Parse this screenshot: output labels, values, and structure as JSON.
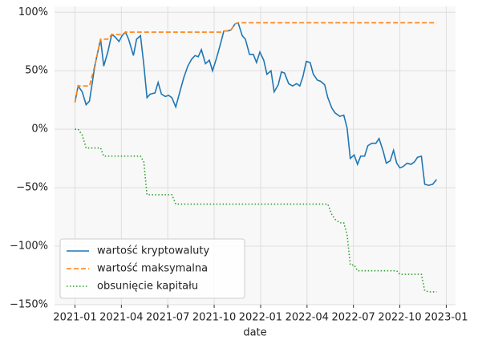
{
  "chart_data": {
    "type": "line",
    "x_label": "date",
    "x": [
      2021,
      2021.017,
      2021.039,
      2021.06,
      2021.078,
      2021.108,
      2021.138,
      2021.155,
      2021.177,
      2021.198,
      2021.216,
      2021.237,
      2021.254,
      2021.272,
      2021.289,
      2021.315,
      2021.332,
      2021.353,
      2021.371,
      2021.388,
      2021.405,
      2021.431,
      2021.448,
      2021.466,
      2021.487,
      2021.504,
      2021.522,
      2021.543,
      2021.565,
      2021.586,
      2021.608,
      2021.629,
      2021.647,
      2021.664,
      2021.681,
      2021.703,
      2021.724,
      2021.741,
      2021.763,
      2021.784,
      2021.802,
      2021.823,
      2021.841,
      2021.862,
      2021.879,
      2021.901,
      2021.918,
      2021.94,
      2021.961,
      2021.978,
      2021.996,
      2022.017,
      2022.034,
      2022.056,
      2022.073,
      2022.095,
      2022.112,
      2022.129,
      2022.151,
      2022.172,
      2022.194,
      2022.211,
      2022.228,
      2022.246,
      2022.267,
      2022.284,
      2022.306,
      2022.323,
      2022.345,
      2022.362,
      2022.384,
      2022.401,
      2022.427,
      2022.448,
      2022.466,
      2022.483,
      2022.504,
      2022.522,
      2022.539,
      2022.56,
      2022.578,
      2022.599,
      2022.621,
      2022.638,
      2022.659,
      2022.677,
      2022.698,
      2022.716,
      2022.733,
      2022.75,
      2022.767,
      2022.789,
      2022.81,
      2022.828,
      2022.845,
      2022.866,
      2022.884,
      2022.905,
      2022.927,
      2022.948
    ],
    "series": [
      {
        "name": "wartość kryptowaluty",
        "color": "#1f77b4",
        "linestyle": "solid",
        "values": [
          23,
          37,
          32,
          21,
          24,
          55,
          77,
          54,
          66,
          81,
          79,
          75,
          80,
          83,
          77,
          63,
          77,
          80,
          55,
          27,
          30,
          31,
          40,
          30,
          28,
          29,
          27,
          19,
          32,
          44,
          54,
          60,
          63,
          62,
          68,
          56,
          59,
          50,
          61,
          73,
          84,
          84,
          85,
          90,
          91,
          80,
          77,
          64,
          64,
          57,
          66,
          59,
          47,
          50,
          32,
          38,
          49,
          48,
          39,
          37,
          39,
          37,
          45,
          58,
          57,
          47,
          42,
          41,
          38,
          27,
          18,
          14,
          11,
          12,
          1,
          -25,
          -22,
          -30,
          -23,
          -23,
          -14,
          -12,
          -12,
          -8,
          -18,
          -29,
          -27,
          -18,
          -29,
          -33,
          -32,
          -29,
          -30,
          -28,
          -24,
          -23,
          -47,
          -48,
          -47,
          -43
        ]
      },
      {
        "name": "wartość maksymalna",
        "color": "#ff7f0e",
        "linestyle": "dashed",
        "values": [
          23,
          37,
          37,
          37,
          37,
          55,
          77,
          77,
          77,
          81,
          81,
          81,
          81,
          83,
          83,
          83,
          83,
          83,
          83,
          83,
          83,
          83,
          83,
          83,
          83,
          83,
          83,
          83,
          83,
          83,
          83,
          83,
          83,
          83,
          83,
          83,
          83,
          83,
          83,
          83,
          84,
          84,
          85,
          90,
          91,
          91,
          91,
          91,
          91,
          91,
          91,
          91,
          91,
          91,
          91,
          91,
          91,
          91,
          91,
          91,
          91,
          91,
          91,
          91,
          91,
          91,
          91,
          91,
          91,
          91,
          91,
          91,
          91,
          91,
          91,
          91,
          91,
          91,
          91,
          91,
          91,
          91,
          91,
          91,
          91,
          91,
          91,
          91,
          91,
          91,
          91,
          91,
          91,
          91,
          91,
          91,
          91,
          91,
          91,
          91
        ]
      },
      {
        "name": "obsunięcie kapitału",
        "color": "#2ca02c",
        "linestyle": "dotted",
        "values": [
          0,
          0,
          -5,
          -16,
          -16,
          -16,
          -16,
          -23,
          -23,
          -23,
          -23,
          -23,
          -23,
          -23,
          -23,
          -23,
          -23,
          -23,
          -28,
          -56,
          -56,
          -56,
          -56,
          -56,
          -56,
          -56,
          -56,
          -64,
          -64,
          -64,
          -64,
          -64,
          -64,
          -64,
          -64,
          -64,
          -64,
          -64,
          -64,
          -64,
          -64,
          -64,
          -64,
          -64,
          -64,
          -64,
          -64,
          -64,
          -64,
          -64,
          -64,
          -64,
          -64,
          -64,
          -64,
          -64,
          -64,
          -64,
          -64,
          -64,
          -64,
          -64,
          -64,
          -64,
          -64,
          -64,
          -64,
          -64,
          -64,
          -64,
          -73,
          -77,
          -80,
          -80,
          -90,
          -116,
          -116,
          -121,
          -121,
          -121,
          -121,
          -121,
          -121,
          -121,
          -121,
          -121,
          -121,
          -121,
          -121,
          -124,
          -124,
          -124,
          -124,
          -124,
          -124,
          -124,
          -138,
          -139,
          -139,
          -139
        ]
      }
    ],
    "xlim": [
      2020.89,
      2023.05
    ],
    "xticks": [
      {
        "value": 2021,
        "label": "2021-01"
      },
      {
        "value": 2021.25,
        "label": "2021-04"
      },
      {
        "value": 2021.5,
        "label": "2021-07"
      },
      {
        "value": 2021.75,
        "label": "2021-10"
      },
      {
        "value": 2022,
        "label": "2022-01"
      },
      {
        "value": 2022.25,
        "label": "2022-04"
      },
      {
        "value": 2022.5,
        "label": "2022-07"
      },
      {
        "value": 2022.75,
        "label": "2022-10"
      },
      {
        "value": 2023,
        "label": "2023-01"
      }
    ],
    "ylim": [
      -150,
      105
    ],
    "yticks": [
      {
        "value": -150,
        "label": "−150%"
      },
      {
        "value": -100,
        "label": "−100%"
      },
      {
        "value": -50,
        "label": "−50%"
      },
      {
        "value": 0,
        "label": "0%"
      },
      {
        "value": 50,
        "label": "50%"
      },
      {
        "value": 100,
        "label": "100%"
      }
    ],
    "grid": true,
    "legend": "lower left"
  }
}
